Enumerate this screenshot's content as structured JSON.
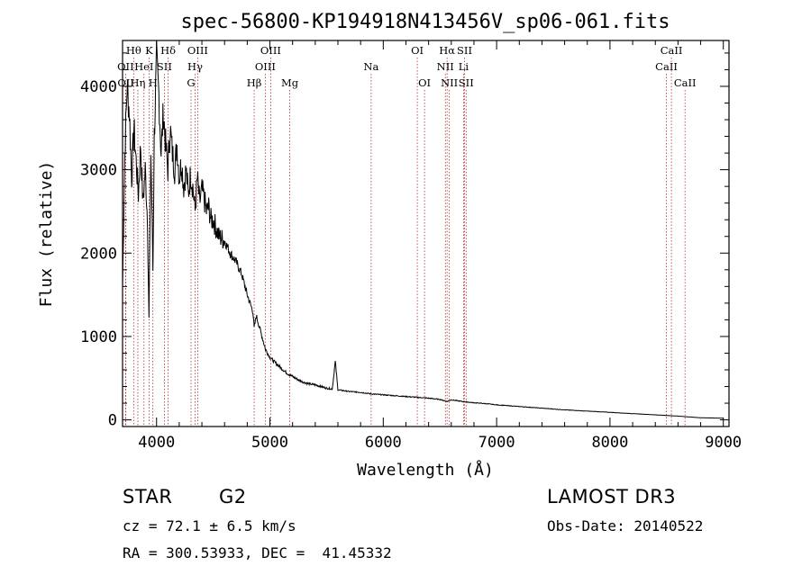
{
  "chart_data": {
    "type": "line",
    "title": "spec-56800-KP194918N413456V_sp06-061.fits",
    "xlabel": "Wavelength (Å)",
    "ylabel": "Flux (relative)",
    "xlim": [
      3700,
      9050
    ],
    "ylim": [
      -80,
      4550
    ],
    "xticks": [
      4000,
      5000,
      6000,
      7000,
      8000,
      9000
    ],
    "yticks": [
      0,
      1000,
      2000,
      3000,
      4000
    ],
    "series": [
      {
        "name": "spectrum",
        "x": [
          3700,
          3720,
          3740,
          3760,
          3780,
          3800,
          3820,
          3840,
          3860,
          3880,
          3900,
          3920,
          3933,
          3950,
          3968,
          3980,
          4000,
          4020,
          4040,
          4060,
          4080,
          4100,
          4120,
          4140,
          4160,
          4180,
          4200,
          4220,
          4240,
          4260,
          4280,
          4300,
          4320,
          4340,
          4360,
          4380,
          4400,
          4420,
          4440,
          4460,
          4480,
          4500,
          4550,
          4600,
          4650,
          4700,
          4750,
          4800,
          4850,
          4861,
          4880,
          4920,
          4960,
          5000,
          5050,
          5100,
          5150,
          5200,
          5250,
          5300,
          5350,
          5400,
          5450,
          5500,
          5550,
          5577,
          5600,
          5650,
          5700,
          5800,
          5900,
          6000,
          6100,
          6200,
          6300,
          6400,
          6500,
          6563,
          6600,
          6700,
          6800,
          6900,
          7000,
          7200,
          7400,
          7600,
          7800,
          8000,
          8200,
          8400,
          8600,
          8800,
          9000
        ],
        "y": [
          1600,
          3200,
          4000,
          3700,
          2900,
          3500,
          3100,
          2700,
          3300,
          2600,
          3000,
          2400,
          1200,
          3200,
          1800,
          3400,
          4300,
          3900,
          3200,
          3700,
          3300,
          3000,
          3500,
          3200,
          3000,
          3300,
          2900,
          3100,
          2800,
          3000,
          2700,
          2950,
          2800,
          2500,
          2900,
          2600,
          2750,
          2650,
          2500,
          2550,
          2400,
          2400,
          2200,
          2150,
          2000,
          1900,
          1750,
          1500,
          1300,
          1100,
          1250,
          1050,
          850,
          750,
          680,
          620,
          560,
          520,
          480,
          450,
          430,
          420,
          400,
          380,
          370,
          700,
          360,
          350,
          340,
          330,
          310,
          300,
          290,
          280,
          270,
          260,
          245,
          220,
          240,
          220,
          205,
          195,
          180,
          160,
          140,
          120,
          105,
          90,
          75,
          60,
          45,
          25,
          20
        ]
      }
    ],
    "spectral_lines": [
      {
        "label": "Hθ",
        "wavelength": 3798,
        "row": 1
      },
      {
        "label": "K",
        "wavelength": 3934,
        "row": 1
      },
      {
        "label": "Hδ",
        "wavelength": 4102,
        "row": 1
      },
      {
        "label": "OIII",
        "wavelength": 4363,
        "row": 1
      },
      {
        "label": "OIII",
        "wavelength": 5007,
        "row": 1
      },
      {
        "label": "OI",
        "wavelength": 6300,
        "row": 1
      },
      {
        "label": "Hα",
        "wavelength": 6563,
        "row": 1
      },
      {
        "label": "SII",
        "wavelength": 6717,
        "row": 1
      },
      {
        "label": "CaII",
        "wavelength": 8542,
        "row": 1
      },
      {
        "label": "OII",
        "wavelength": 3727,
        "row": 2
      },
      {
        "label": "HeI",
        "wavelength": 3889,
        "row": 2
      },
      {
        "label": "SII",
        "wavelength": 4069,
        "row": 2
      },
      {
        "label": "Hγ",
        "wavelength": 4340,
        "row": 2
      },
      {
        "label": "OIII",
        "wavelength": 4959,
        "row": 2
      },
      {
        "label": "Na",
        "wavelength": 5893,
        "row": 2
      },
      {
        "label": "NII",
        "wavelength": 6548,
        "row": 2
      },
      {
        "label": "Li",
        "wavelength": 6708,
        "row": 2
      },
      {
        "label": "CaII",
        "wavelength": 8498,
        "row": 2
      },
      {
        "label": "OII",
        "wavelength": 3729,
        "row": 3
      },
      {
        "label": "Hη",
        "wavelength": 3835,
        "row": 3
      },
      {
        "label": "H",
        "wavelength": 3968,
        "row": 3
      },
      {
        "label": "G",
        "wavelength": 4304,
        "row": 3
      },
      {
        "label": "Hβ",
        "wavelength": 4861,
        "row": 3
      },
      {
        "label": "Mg",
        "wavelength": 5175,
        "row": 3
      },
      {
        "label": "OI",
        "wavelength": 6364,
        "row": 3
      },
      {
        "label": "NII",
        "wavelength": 6583,
        "row": 3
      },
      {
        "label": "SII",
        "wavelength": 6731,
        "row": 3
      },
      {
        "label": "CaII",
        "wavelength": 8662,
        "row": 3
      }
    ]
  },
  "info": {
    "class": "STAR",
    "subclass": "G2",
    "survey": "LAMOST DR3",
    "cz": "cz = 72.1 ± 6.5 km/s",
    "obs_date": "Obs-Date: 20140522",
    "coords": "RA = 300.53933, DEC =  41.45332"
  },
  "colors": {
    "line_marker": "#b03030",
    "spectrum": "#000000"
  }
}
